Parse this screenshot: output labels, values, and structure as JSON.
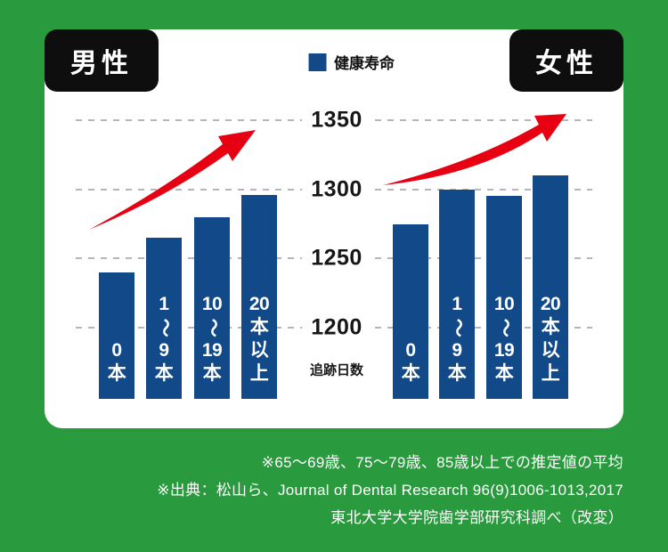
{
  "colors": {
    "background_green": "#2a9a3e",
    "bar_blue": "#124a89",
    "arrow_red": "#e60012",
    "tag_black": "#0e0e0e",
    "gridline_gray": "#b5b5b5"
  },
  "chart_data": {
    "type": "bar",
    "legend_label": "健康寿命",
    "ylabel": "追跡日数",
    "yticks": [
      1350,
      1300,
      1250,
      1200
    ],
    "ylim": [
      1148,
      1365
    ],
    "grid": "horizontal dashed",
    "categories": [
      "0本",
      "1〜9本",
      "10〜19本",
      "20本以上"
    ],
    "category_chars": [
      [
        "0",
        "本"
      ],
      [
        "1",
        "〜",
        "9",
        "本"
      ],
      [
        "10",
        "〜",
        "19",
        "本"
      ],
      [
        "20",
        "本",
        "以",
        "上"
      ]
    ],
    "groups": [
      {
        "name": "男性",
        "values": [
          1240,
          1265,
          1280,
          1296
        ]
      },
      {
        "name": "女性",
        "values": [
          1275,
          1300,
          1295,
          1310
        ]
      }
    ],
    "bar_color": "#124a89",
    "annotations": [
      "男性グループ上に赤い上昇トレンド矢印",
      "女性グループ上に赤い上昇トレンド矢印"
    ]
  },
  "footnotes": [
    "※65〜69歳、75〜79歳、85歳以上での推定値の平均",
    "※出典：松山ら、Journal of Dental Research 96(9)1006-1013,2017",
    "東北大学大学院歯学部研究科調べ（改変）"
  ]
}
